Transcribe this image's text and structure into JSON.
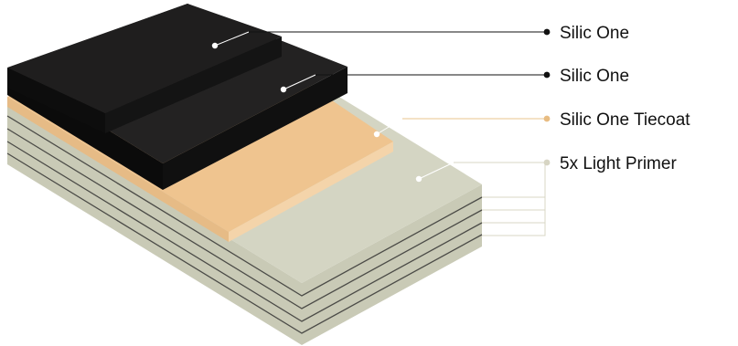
{
  "layers": [
    {
      "label": "Silic One",
      "color": "#1f1e1e",
      "dot_color": "#111111"
    },
    {
      "label": "Silic One",
      "color": "#1f1e1e",
      "dot_color": "#111111"
    },
    {
      "label": "Silic One Tiecoat",
      "color": "#efc48f",
      "dot_color": "#e8bc82"
    },
    {
      "label": "5x Light Primer",
      "color": "#d4d5c3",
      "dot_color": "#d7d5c3"
    }
  ],
  "colors": {
    "primer_top": "#d4d5c3",
    "primer_side": "#c9cab6",
    "primer_line": "#4b4b47",
    "tiecoat_top": "#efc48f",
    "tiecoat_front": "#f4d4aa",
    "membrane_top": "#1f1e1e",
    "membrane_side": "#0b0b0b",
    "leader_line": "#111111",
    "tiecoat_leader": "#e9c48e",
    "primer_leader": "#d8d7c6"
  }
}
